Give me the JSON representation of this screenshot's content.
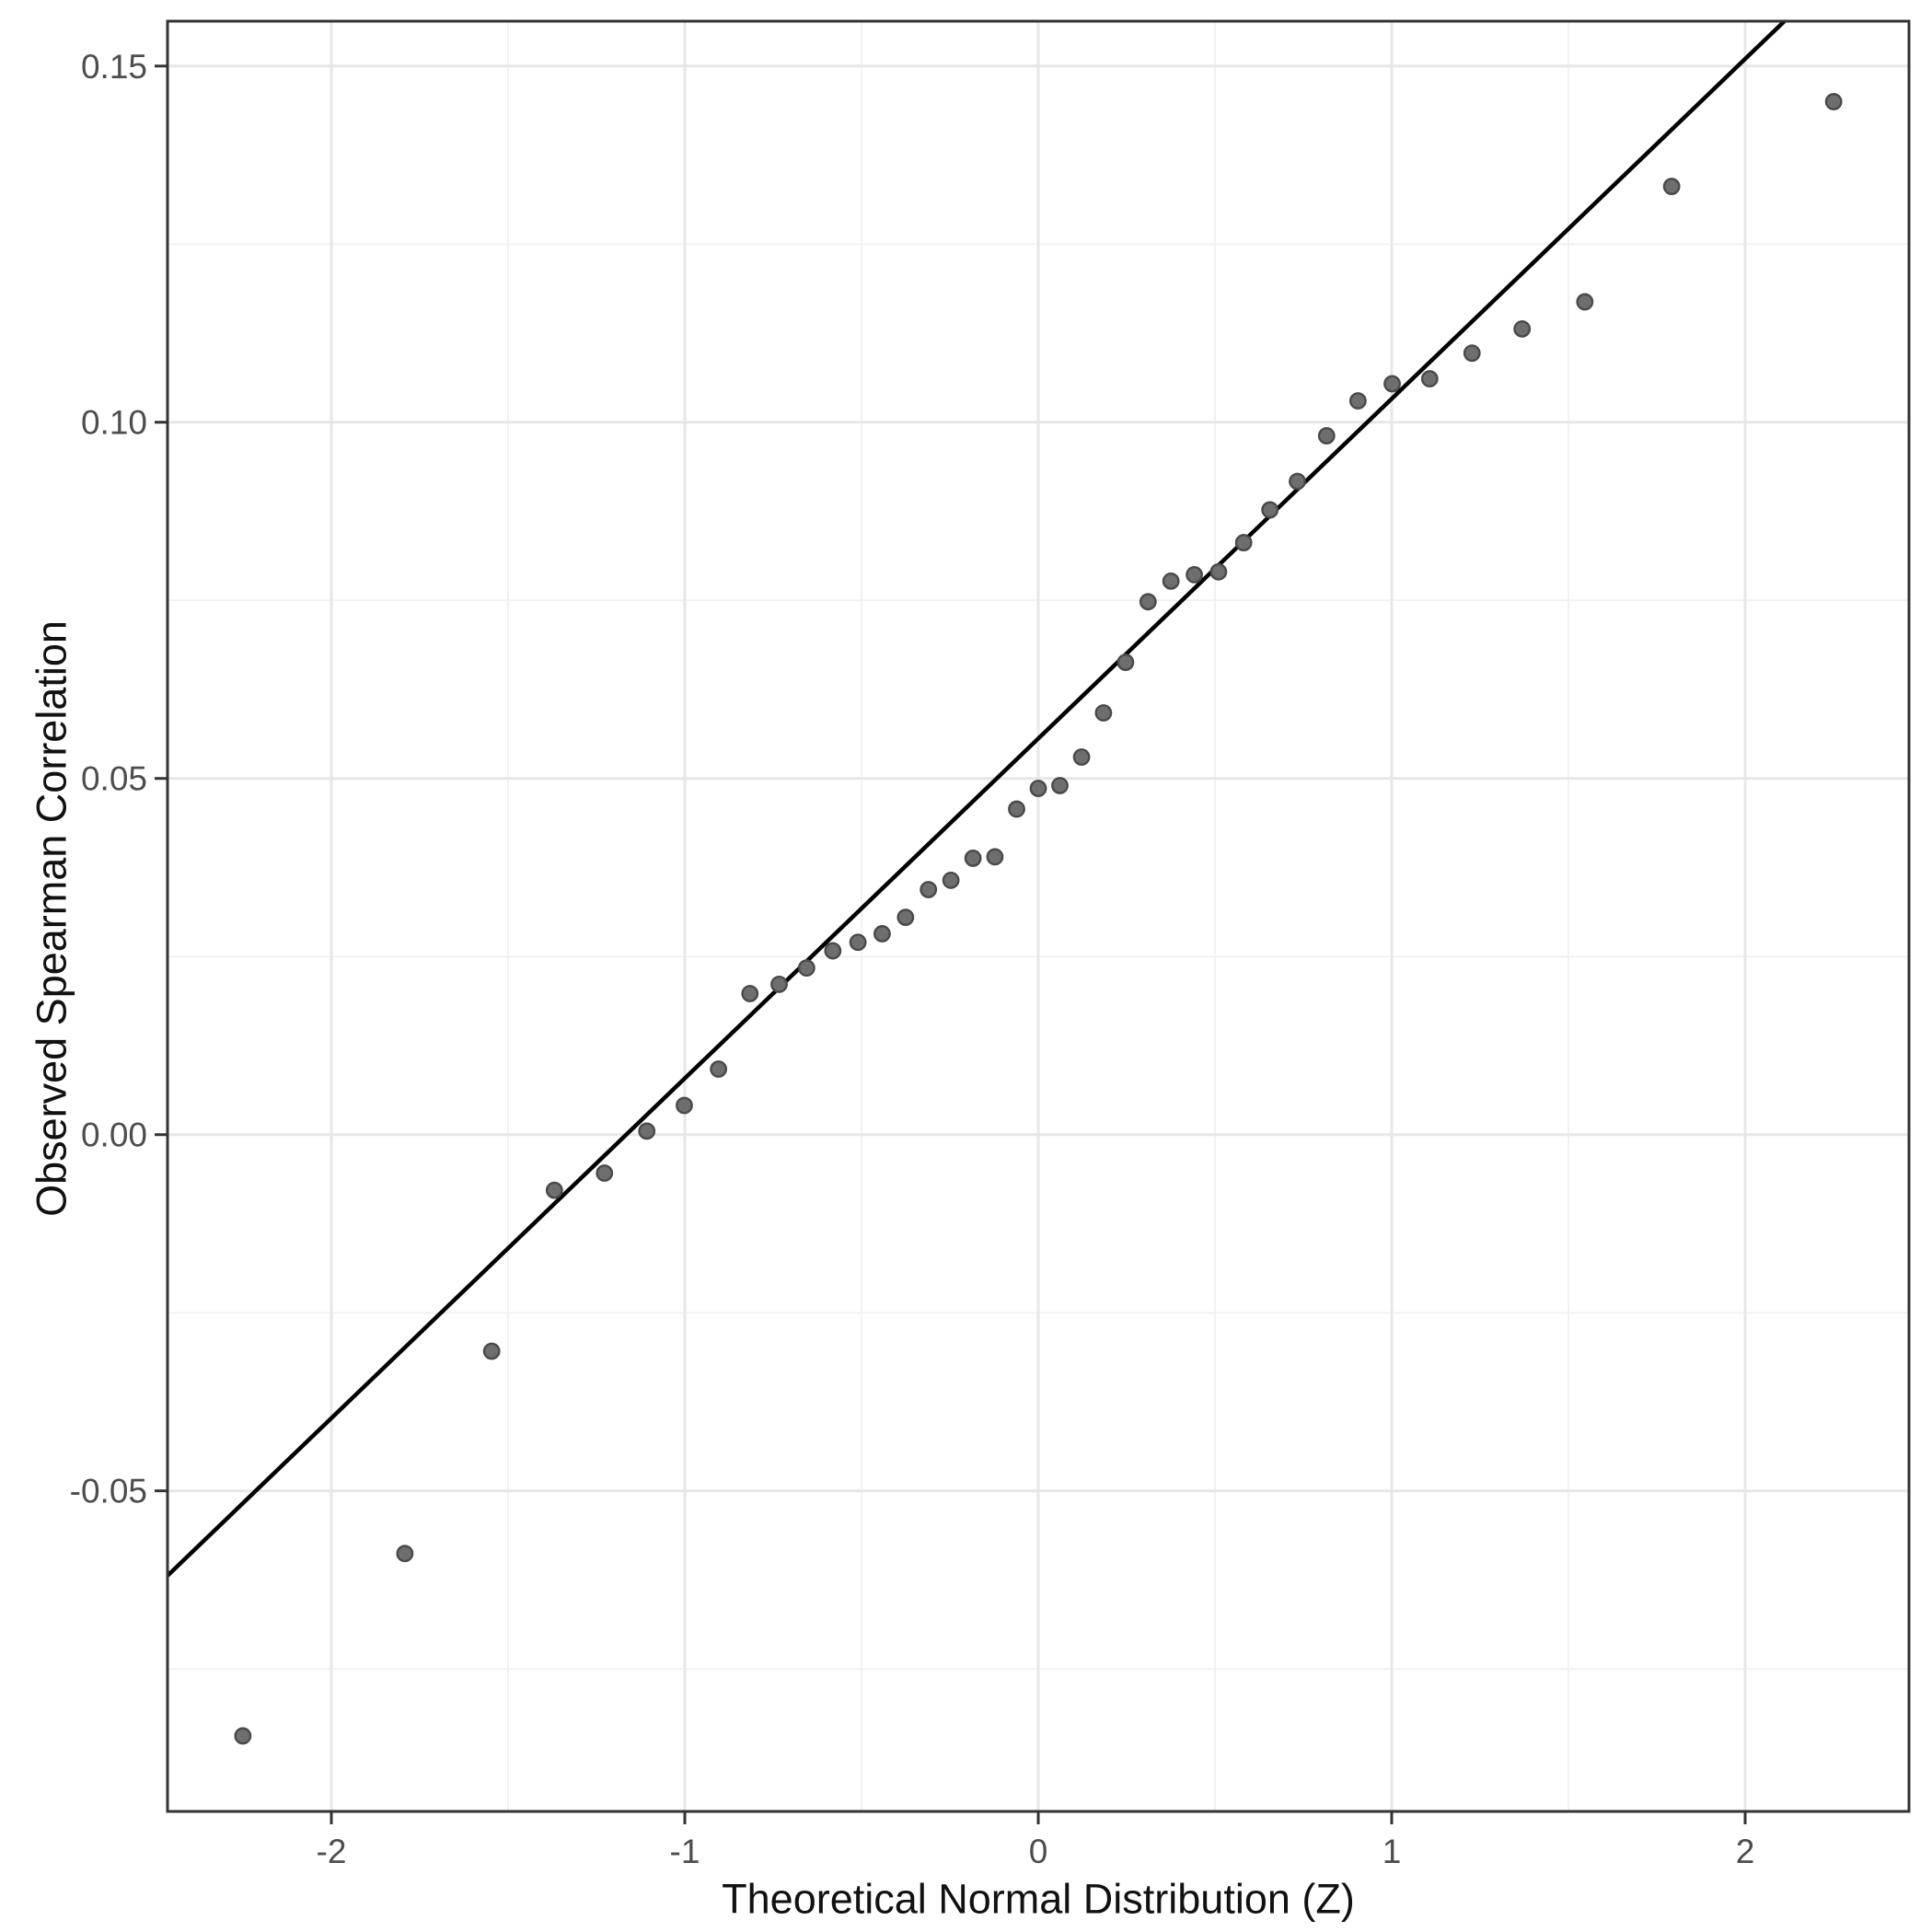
{
  "chart_data": {
    "type": "scatter",
    "title": "",
    "xlabel": "Theoretical Normal Distribution (Z)",
    "ylabel": "Observed Spearman Correlation",
    "xlim": [
      -2.4635,
      2.4635
    ],
    "ylim": [
      -0.095,
      0.1563
    ],
    "grid": "on",
    "legend": "none",
    "x_ticks": [
      {
        "value": -2,
        "label": "-2"
      },
      {
        "value": -1,
        "label": "-1"
      },
      {
        "value": 0,
        "label": "0"
      },
      {
        "value": 1,
        "label": "1"
      },
      {
        "value": 2,
        "label": "2"
      }
    ],
    "y_ticks": [
      {
        "value": 0.15,
        "label": "0.15"
      },
      {
        "value": 0.1,
        "label": "0.10"
      },
      {
        "value": 0.05,
        "label": "0.05"
      },
      {
        "value": 0.0,
        "label": "0.00"
      },
      {
        "value": -0.05,
        "label": "-0.05"
      }
    ],
    "x_minor": [
      -1.5,
      -0.5,
      0.5,
      1.5
    ],
    "y_minor": [
      -0.075,
      -0.025,
      0.025,
      0.075,
      0.125
    ],
    "qq_line": {
      "slope": 0.0477,
      "intercept": 0.0556
    },
    "points": [
      [
        -2.2504,
        -0.0844
      ],
      [
        -1.792,
        -0.0588
      ],
      [
        -1.5464,
        -0.0304
      ],
      [
        -1.369,
        -0.0078
      ],
      [
        -1.2272,
        -0.0054
      ],
      [
        -1.1075,
        0.0005
      ],
      [
        -1.0014,
        0.0041
      ],
      [
        -0.9046,
        0.0092
      ],
      [
        -0.8157,
        0.0198
      ],
      [
        -0.7331,
        0.0211
      ],
      [
        -0.6554,
        0.0234
      ],
      [
        -0.5812,
        0.0258
      ],
      [
        -0.5101,
        0.027
      ],
      [
        -0.4416,
        0.0282
      ],
      [
        -0.3754,
        0.0305
      ],
      [
        -0.3107,
        0.0344
      ],
      [
        -0.2471,
        0.0357
      ],
      [
        -0.1846,
        0.0388
      ],
      [
        -0.1226,
        0.039
      ],
      [
        -0.0612,
        0.0457
      ],
      [
        0.0,
        0.0486
      ],
      [
        0.0612,
        0.049
      ],
      [
        0.1226,
        0.053
      ],
      [
        0.1846,
        0.0592
      ],
      [
        0.2471,
        0.0663
      ],
      [
        0.3107,
        0.0748
      ],
      [
        0.3754,
        0.0777
      ],
      [
        0.4416,
        0.0786
      ],
      [
        0.5101,
        0.079
      ],
      [
        0.5812,
        0.0831
      ],
      [
        0.6554,
        0.0877
      ],
      [
        0.7331,
        0.0917
      ],
      [
        0.8157,
        0.0981
      ],
      [
        0.9046,
        0.103
      ],
      [
        1.0014,
        0.1054
      ],
      [
        1.1075,
        0.1061
      ],
      [
        1.2272,
        0.1097
      ],
      [
        1.369,
        0.1131
      ],
      [
        1.5464,
        0.1169
      ],
      [
        1.792,
        0.1331
      ],
      [
        2.2504,
        0.145
      ]
    ],
    "style": {
      "background": "#ffffff",
      "panel_border": "#333333",
      "grid_major": "#e7e7e7",
      "grid_minor": "#f0f0f0",
      "tick_color": "#333333",
      "tick_label_color": "#4d4d4d",
      "title_color": "#111111",
      "point_fill": "#6e6e6e",
      "point_stroke": "#4a4a4a",
      "line_color": "#000000"
    }
  }
}
